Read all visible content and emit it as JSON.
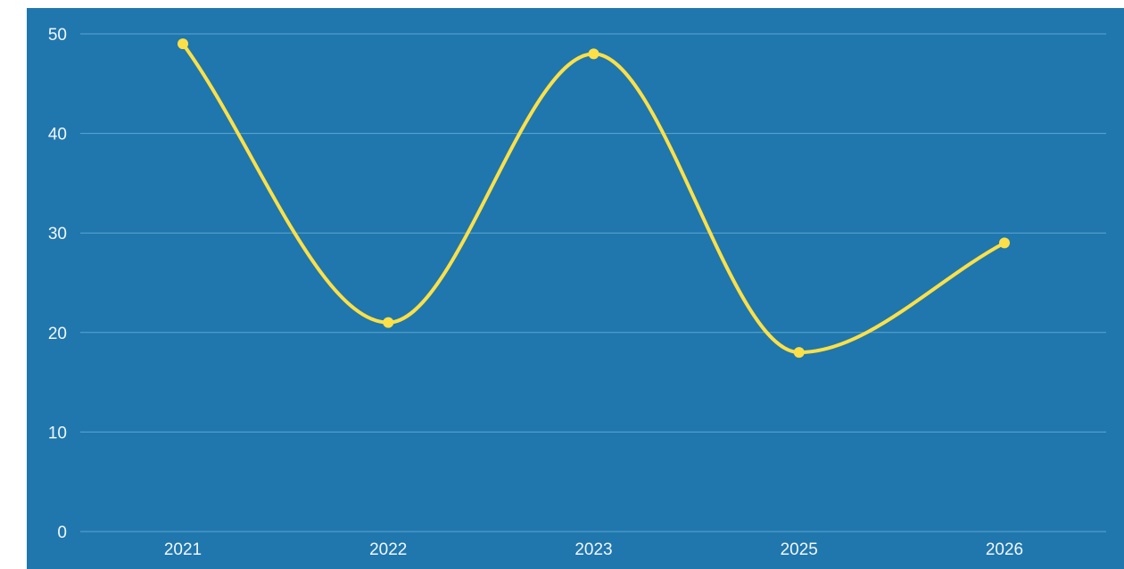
{
  "chart_data": {
    "type": "line",
    "title": "",
    "xlabel": "",
    "ylabel": "",
    "categories": [
      "2021",
      "2022",
      "2023",
      "2025",
      "2026"
    ],
    "series": [
      {
        "values": [
          49,
          21,
          48,
          18,
          29
        ]
      }
    ],
    "ylim": [
      0,
      50
    ],
    "yticks": [
      0,
      10,
      20,
      30,
      40,
      50
    ],
    "grid": true,
    "smooth": true,
    "colors": {
      "plot_background": "#1f77ad",
      "line": "#fde047",
      "grid": "#5fa6d2",
      "text": "#f2f6fb"
    }
  }
}
